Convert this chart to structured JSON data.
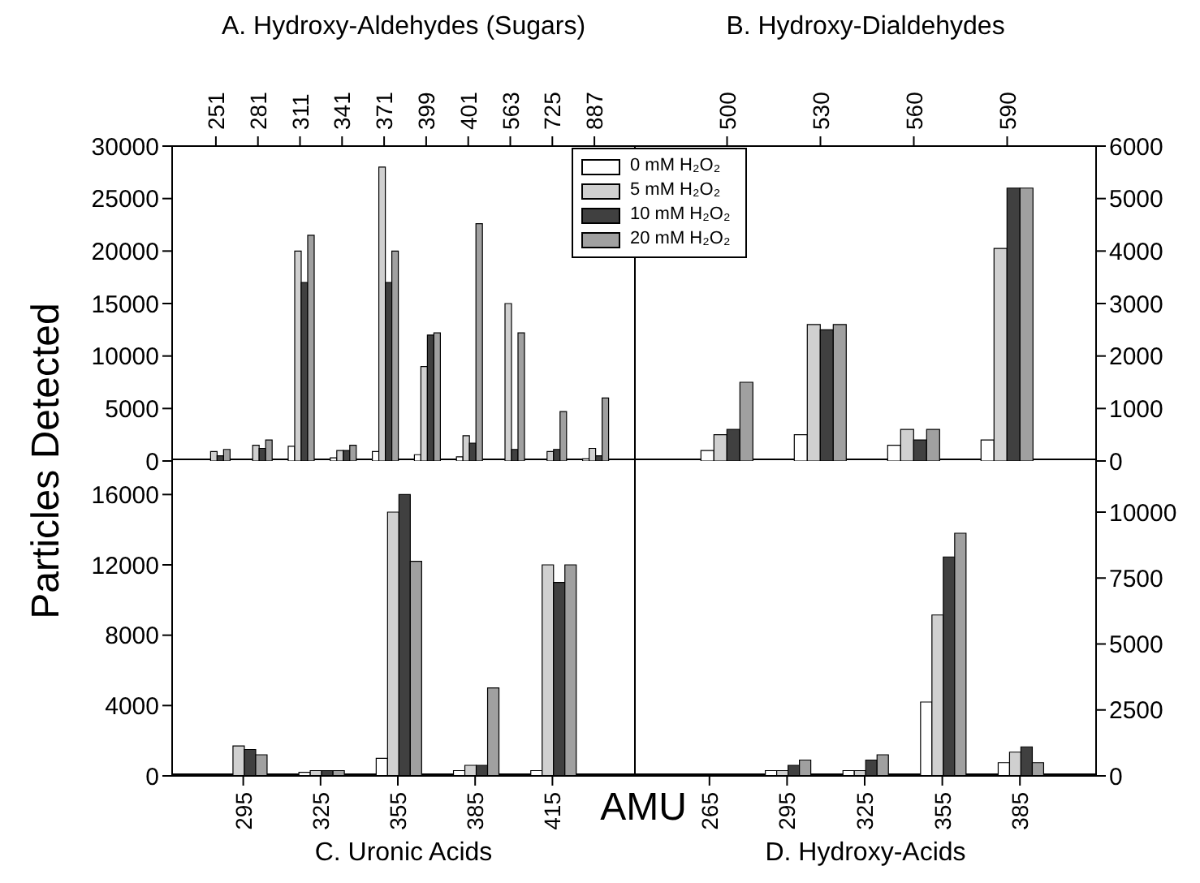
{
  "chart_data": [
    {
      "type": "bar",
      "title": "A. Hydroxy-Aldehydes (Sugars)",
      "ylabel": "Particles Detected",
      "categories": [
        "251",
        "281",
        "311",
        "341",
        "371",
        "399",
        "401",
        "563",
        "725",
        "887"
      ],
      "series": [
        {
          "name": "0 mM H₂O₂",
          "color": "#ffffff",
          "values": [
            null,
            0,
            1400,
            300,
            900,
            600,
            400,
            null,
            null,
            200
          ]
        },
        {
          "name": "5 mM H₂O₂",
          "color": "#d0d0d0",
          "values": [
            900,
            1500,
            20000,
            1000,
            28000,
            9000,
            2400,
            15000,
            900,
            1200
          ]
        },
        {
          "name": "10 mM H₂O₂",
          "color": "#404040",
          "values": [
            500,
            1200,
            17000,
            1000,
            17000,
            12000,
            1700,
            1100,
            1100,
            500
          ]
        },
        {
          "name": "20 mM H₂O₂",
          "color": "#a0a0a0",
          "values": [
            1100,
            2000,
            21500,
            1500,
            20000,
            12200,
            22600,
            12200,
            4700,
            6000
          ]
        }
      ],
      "ylim": [
        0,
        30000
      ],
      "yticks": [
        0,
        5000,
        10000,
        15000,
        20000,
        25000,
        30000
      ],
      "legend": "top right"
    },
    {
      "type": "bar",
      "title": "B. Hydroxy-Dialdehydes",
      "categories": [
        "500",
        "530",
        "560",
        "590"
      ],
      "series": [
        {
          "color": "#ffffff",
          "values": [
            200,
            500,
            300,
            400
          ]
        },
        {
          "color": "#d0d0d0",
          "values": [
            500,
            2600,
            600,
            4050
          ]
        },
        {
          "color": "#404040",
          "values": [
            600,
            2500,
            400,
            5200
          ]
        },
        {
          "color": "#a0a0a0",
          "values": [
            1500,
            2600,
            600,
            5200
          ]
        }
      ],
      "ylim": [
        0,
        6000
      ],
      "yticks": [
        0,
        1000,
        2000,
        3000,
        4000,
        5000,
        6000
      ]
    },
    {
      "type": "bar",
      "title": "C. Uronic Acids",
      "categories": [
        "295",
        "325",
        "355",
        "385",
        "415"
      ],
      "series": [
        {
          "color": "#ffffff",
          "values": [
            null,
            200,
            1000,
            300,
            300
          ]
        },
        {
          "color": "#d0d0d0",
          "values": [
            1700,
            300,
            15000,
            600,
            12000
          ]
        },
        {
          "color": "#404040",
          "values": [
            1500,
            300,
            16000,
            600,
            11000
          ]
        },
        {
          "color": "#a0a0a0",
          "values": [
            1200,
            300,
            12200,
            5000,
            12000
          ]
        }
      ],
      "ylim": [
        0,
        18000
      ],
      "yticks": [
        0,
        4000,
        8000,
        12000,
        16000
      ]
    },
    {
      "type": "bar",
      "title": "D. Hydroxy-Acids",
      "xlabel": "AMU",
      "categories": [
        "265",
        "295",
        "325",
        "355",
        "385"
      ],
      "series": [
        {
          "color": "#ffffff",
          "values": [
            0,
            200,
            200,
            2800,
            500
          ]
        },
        {
          "color": "#d0d0d0",
          "values": [
            0,
            200,
            200,
            6100,
            900
          ]
        },
        {
          "color": "#404040",
          "values": [
            0,
            400,
            600,
            8300,
            1100
          ]
        },
        {
          "color": "#a0a0a0",
          "values": [
            0,
            600,
            800,
            9200,
            500
          ]
        }
      ],
      "ylim": [
        0,
        12000
      ],
      "yticks": [
        0,
        2500,
        5000,
        7500,
        10000
      ]
    }
  ]
}
